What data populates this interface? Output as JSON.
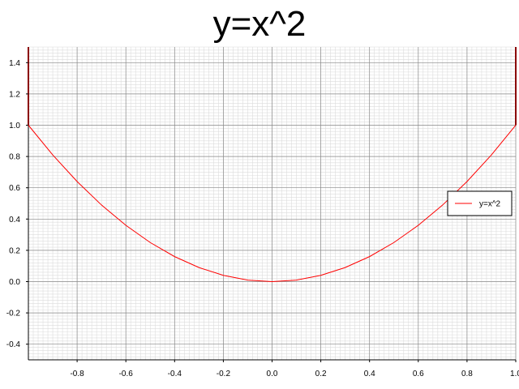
{
  "chart_data": {
    "type": "line",
    "title": "y=x^2",
    "xlabel": "",
    "ylabel": "",
    "xlim": [
      -1.0,
      1.0
    ],
    "ylim": [
      -0.5,
      1.5
    ],
    "x_ticks": [
      -0.8,
      -0.6,
      -0.4,
      -0.2,
      0.0,
      0.2,
      0.4,
      0.6,
      0.8,
      1.0
    ],
    "x_tick_labels": [
      "-0.8",
      "-0.6",
      "-0.4",
      "-0.2",
      "0.0",
      "0.2",
      "0.4",
      "0.6",
      "0.8",
      "1.0"
    ],
    "y_ticks": [
      -0.4,
      -0.2,
      0.0,
      0.2,
      0.4,
      0.6,
      0.8,
      1.0,
      1.2,
      1.4
    ],
    "y_tick_labels": [
      "-0.4",
      "-0.2",
      "0.0",
      "0.2",
      "0.4",
      "0.6",
      "0.8",
      "1.0",
      "1.2",
      "1.4"
    ],
    "grid": true,
    "legend_position": "right",
    "series": [
      {
        "name": "y=x^2",
        "color": "#ff0000",
        "x": [
          -1.0,
          -0.9,
          -0.8,
          -0.7,
          -0.6,
          -0.5,
          -0.4,
          -0.3,
          -0.2,
          -0.1,
          0.0,
          0.1,
          0.2,
          0.3,
          0.4,
          0.5,
          0.6,
          0.7,
          0.8,
          0.9,
          1.0
        ],
        "y": [
          1.0,
          0.81,
          0.64,
          0.49,
          0.36,
          0.25,
          0.16,
          0.09,
          0.04,
          0.01,
          0.0,
          0.01,
          0.04,
          0.09,
          0.16,
          0.25,
          0.36,
          0.49,
          0.64,
          0.81,
          1.0
        ]
      }
    ]
  }
}
